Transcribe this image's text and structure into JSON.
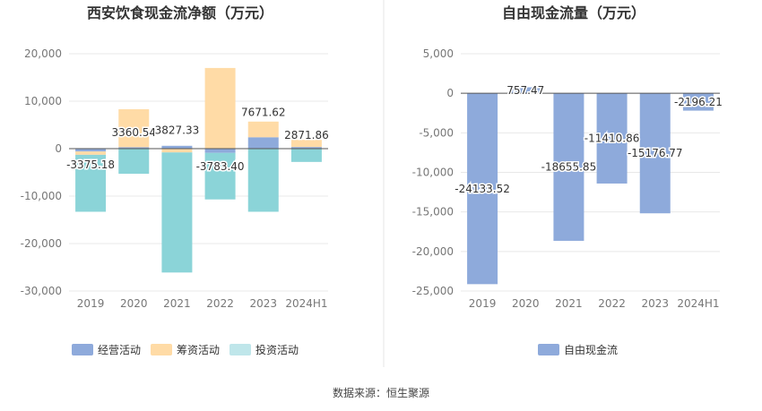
{
  "source": "数据来源：恒生聚源",
  "chart_data": [
    {
      "type": "bar",
      "stacked": true,
      "title": "西安饮食现金流净额（万元）",
      "categories": [
        "2019",
        "2020",
        "2021",
        "2022",
        "2023",
        "2024H1"
      ],
      "ylim": [
        -30000,
        20000
      ],
      "yticks": [
        20000,
        10000,
        0,
        -10000,
        -20000,
        -30000
      ],
      "ytick_labels": [
        "20,000",
        "10,000",
        "0",
        "-10,000",
        "-20,000",
        "-30,000"
      ],
      "grid": true,
      "legend_position": "bottom-left",
      "series": [
        {
          "name": "经营活动",
          "color": "#8eaadb",
          "values": [
            -600,
            300,
            600,
            -900,
            2400,
            350
          ]
        },
        {
          "name": "筹资活动",
          "color": "#ffdba6",
          "values": [
            -700,
            8000,
            -800,
            17000,
            3300,
            1500
          ]
        },
        {
          "name": "投资活动",
          "color": "#8bd4d8",
          "values": [
            -12000,
            -5300,
            -25300,
            -9800,
            -13300,
            -2800
          ]
        }
      ],
      "legend_colors": [
        "#8eaadb",
        "#ffdba6",
        "#bfe6ea"
      ],
      "net_labels": [
        "-3375.18",
        "3360.54",
        "3827.33",
        "-3783.40",
        "7671.62",
        "2871.86"
      ],
      "net_values": [
        -3375.18,
        3360.54,
        3827.33,
        -3783.4,
        7671.62,
        2871.86
      ]
    },
    {
      "type": "bar",
      "title": "自由现金流量（万元）",
      "categories": [
        "2019",
        "2020",
        "2021",
        "2022",
        "2023",
        "2024H1"
      ],
      "ylim": [
        -25000,
        5000
      ],
      "yticks": [
        5000,
        0,
        -5000,
        -10000,
        -15000,
        -20000,
        -25000
      ],
      "ytick_labels": [
        "5,000",
        "0",
        "-5,000",
        "-10,000",
        "-15,000",
        "-20,000",
        "-25,000"
      ],
      "grid": true,
      "legend_position": "bottom-center",
      "series": [
        {
          "name": "自由现金流",
          "color": "#8eaadb",
          "values": [
            -24133.52,
            757.47,
            -18655.85,
            -11410.86,
            -15176.77,
            -2196.21
          ]
        }
      ],
      "labels": [
        "-24133.52",
        "757.47",
        "-18655.85",
        "-11410.86",
        "-15176.77",
        "-2196.21"
      ]
    }
  ]
}
